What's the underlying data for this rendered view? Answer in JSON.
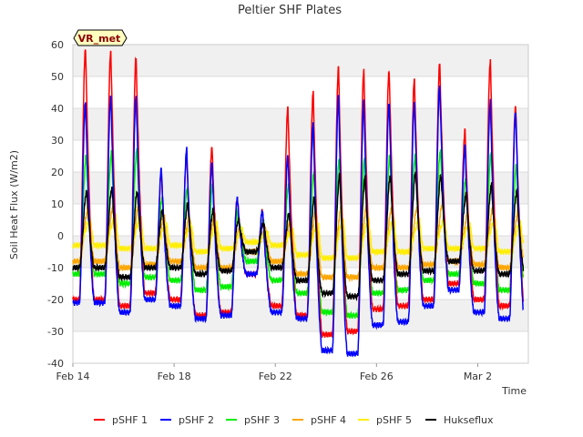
{
  "chart_data": {
    "type": "line",
    "title": "Peltier SHF Plates",
    "xlabel": "Time",
    "ylabel": "Soil Heat Flux (W/m2)",
    "badge": "VR_met",
    "xlim": [
      0,
      18
    ],
    "ylim": [
      -40,
      60
    ],
    "x_ticks": [
      {
        "x": 0,
        "label": "Feb 14"
      },
      {
        "x": 4,
        "label": "Feb 18"
      },
      {
        "x": 8,
        "label": "Feb 22"
      },
      {
        "x": 12,
        "label": "Feb 26"
      },
      {
        "x": 16,
        "label": "Mar 2"
      }
    ],
    "y_ticks": [
      -40,
      -30,
      -20,
      -10,
      0,
      10,
      20,
      30,
      40,
      50,
      60
    ],
    "grid": true,
    "legend_position": "bottom",
    "days": [
      0,
      1,
      2,
      3,
      4,
      5,
      6,
      7,
      8,
      9,
      10,
      11,
      12,
      13,
      14,
      15,
      16,
      17
    ],
    "series": [
      {
        "name": "pSHF 1",
        "color": "#ff0000",
        "lag": 0.0,
        "peaks": [
          59,
          58,
          56,
          20,
          26,
          28,
          12,
          8,
          40,
          45,
          53,
          52,
          52,
          49,
          54,
          33,
          55,
          41
        ],
        "troughs": [
          -20,
          -22,
          -18,
          -20,
          -25,
          -24,
          -12,
          -22,
          -25,
          -31,
          -30,
          -23,
          -22,
          -20,
          -15,
          -20,
          -22,
          -23
        ]
      },
      {
        "name": "pSHF 2",
        "color": "#0000ff",
        "lag": 0.0,
        "peaks": [
          42,
          44,
          44,
          21,
          27,
          23,
          12,
          8,
          25,
          35,
          44,
          42,
          42,
          42,
          47,
          28,
          42,
          39
        ],
        "troughs": [
          -21,
          -24,
          -20,
          -22,
          -26,
          -25,
          -12,
          -24,
          -26,
          -36,
          -37,
          -28,
          -27,
          -22,
          -17,
          -24,
          -26,
          -26
        ]
      },
      {
        "name": "pSHF 3",
        "color": "#00ee00",
        "lag": 0.03,
        "peaks": [
          25,
          26,
          27,
          12,
          15,
          16,
          8,
          5,
          16,
          20,
          24,
          24,
          25,
          25,
          27,
          18,
          26,
          22
        ],
        "troughs": [
          -12,
          -15,
          -13,
          -14,
          -17,
          -16,
          -8,
          -14,
          -18,
          -24,
          -25,
          -18,
          -17,
          -14,
          -12,
          -15,
          -17,
          -15
        ]
      },
      {
        "name": "pSHF 4",
        "color": "#ffa500",
        "lag": 0.12,
        "peaks": [
          9,
          10,
          10,
          6,
          6,
          7,
          3,
          2,
          5,
          8,
          9,
          9,
          9,
          9,
          10,
          7,
          9,
          8
        ],
        "troughs": [
          -8,
          -10,
          -9,
          -8,
          -10,
          -10,
          -5,
          -8,
          -12,
          -13,
          -13,
          -10,
          -10,
          -9,
          -8,
          -9,
          -10,
          -9
        ]
      },
      {
        "name": "pSHF 5",
        "color": "#ffee00",
        "lag": 0.2,
        "peaks": [
          5,
          6,
          6,
          4,
          3,
          4,
          2,
          1,
          2,
          4,
          5,
          5,
          5,
          5,
          5,
          4,
          5,
          4
        ],
        "troughs": [
          -3,
          -4,
          -4,
          -3,
          -5,
          -4,
          -2,
          -3,
          -6,
          -7,
          -7,
          -5,
          -5,
          -4,
          -4,
          -4,
          -5,
          -4
        ]
      },
      {
        "name": "Hukseflux",
        "color": "#000000",
        "lag": 0.05,
        "peaks": [
          14,
          15,
          14,
          8,
          10,
          8,
          5,
          4,
          7,
          12,
          19,
          18,
          19,
          20,
          19,
          13,
          16,
          14
        ],
        "troughs": [
          -10,
          -13,
          -10,
          -10,
          -12,
          -11,
          -5,
          -10,
          -14,
          -18,
          -19,
          -14,
          -12,
          -11,
          -8,
          -11,
          -12,
          -12
        ]
      }
    ]
  }
}
